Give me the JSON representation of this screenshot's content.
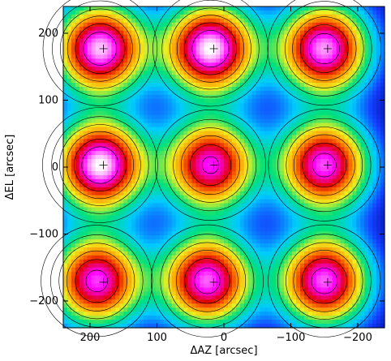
{
  "chart_data": {
    "type": "heatmap",
    "title": "",
    "xlabel": "ΔAZ [arcsec]",
    "ylabel": "ΔEL [arcsec]",
    "xlim": [
      240,
      -240
    ],
    "ylim": [
      -240,
      240
    ],
    "x_ticks": [
      200,
      100,
      0,
      -100,
      -200
    ],
    "y_ticks": [
      200,
      100,
      0,
      -100,
      -200
    ],
    "x_tick_labels": [
      "200",
      "100",
      "0",
      "−100",
      "−200"
    ],
    "y_tick_labels": [
      "200",
      "100",
      "0",
      "−100",
      "−200"
    ],
    "colormap": [
      "#00008a",
      "#1440ff",
      "#00ccff",
      "#00e07a",
      "#f0f020",
      "#ff8c00",
      "#e00000",
      "#ff00ff",
      "#ffffff"
    ],
    "contour_color": "#000000",
    "beams": [
      {
        "az": 185,
        "el": 177,
        "peak": 0.97
      },
      {
        "az": 20,
        "el": 177,
        "peak": 1.0
      },
      {
        "az": -150,
        "el": 177,
        "peak": 0.95
      },
      {
        "az": 185,
        "el": 3,
        "peak": 1.0
      },
      {
        "az": 20,
        "el": 3,
        "peak": 0.88
      },
      {
        "az": -150,
        "el": 3,
        "peak": 0.91
      },
      {
        "az": 190,
        "el": -170,
        "peak": 0.9
      },
      {
        "az": 25,
        "el": -170,
        "peak": 0.92
      },
      {
        "az": -150,
        "el": -170,
        "peak": 0.92
      }
    ],
    "markers": [
      {
        "az": 180,
        "el": 177
      },
      {
        "az": 15,
        "el": 177
      },
      {
        "az": -155,
        "el": 177
      },
      {
        "az": 180,
        "el": 3
      },
      {
        "az": 15,
        "el": 3
      },
      {
        "az": -155,
        "el": 3
      },
      {
        "az": 180,
        "el": -172
      },
      {
        "az": 15,
        "el": -172
      },
      {
        "az": -155,
        "el": -172
      }
    ]
  }
}
